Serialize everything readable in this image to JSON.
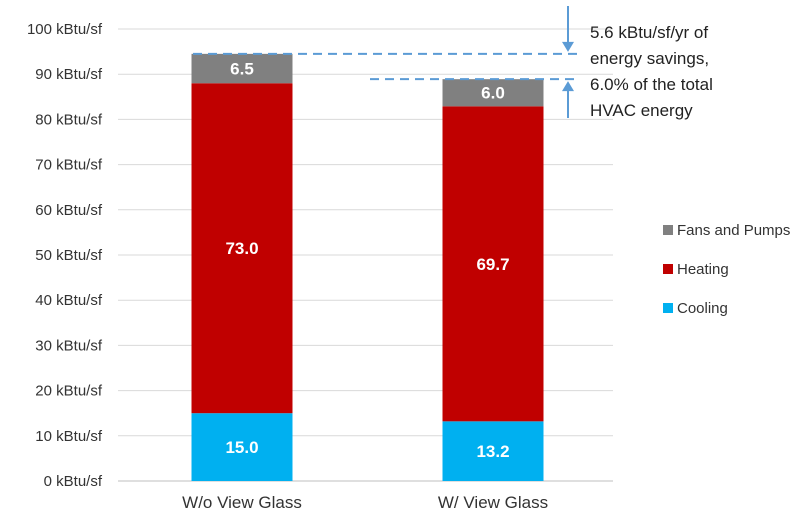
{
  "chart_data": {
    "type": "bar",
    "stacked": true,
    "categories": [
      "W/o View Glass",
      "W/ View Glass"
    ],
    "series": [
      {
        "name": "Cooling",
        "values": [
          15.0,
          13.2
        ],
        "labels": [
          "15.0",
          "13.2"
        ],
        "color": "#00b0f0"
      },
      {
        "name": "Heating",
        "values": [
          73.0,
          69.7
        ],
        "labels": [
          "73.0",
          "69.7"
        ],
        "color": "#c00000"
      },
      {
        "name": "Fans and Pumps",
        "values": [
          6.5,
          6.0
        ],
        "labels": [
          "6.5",
          "6.0"
        ],
        "color": "#808080"
      }
    ],
    "y_ticks": [
      "0 kBtu/sf",
      "10 kBtu/sf",
      "20 kBtu/sf",
      "30 kBtu/sf",
      "40 kBtu/sf",
      "50 kBtu/sf",
      "60 kBtu/sf",
      "70 kBtu/sf",
      "80 kBtu/sf",
      "90 kBtu/sf",
      "100 kBtu/sf"
    ],
    "ylim": [
      0,
      100
    ],
    "grid": true,
    "legend_position": "right",
    "legend_order": [
      "Fans and Pumps",
      "Heating",
      "Cooling"
    ],
    "annotation": {
      "lines": [
        "5.6 kBtu/sf/yr of",
        "energy savings,",
        "6.0% of the total",
        "HVAC energy"
      ],
      "color": "#5b9bd5"
    }
  }
}
